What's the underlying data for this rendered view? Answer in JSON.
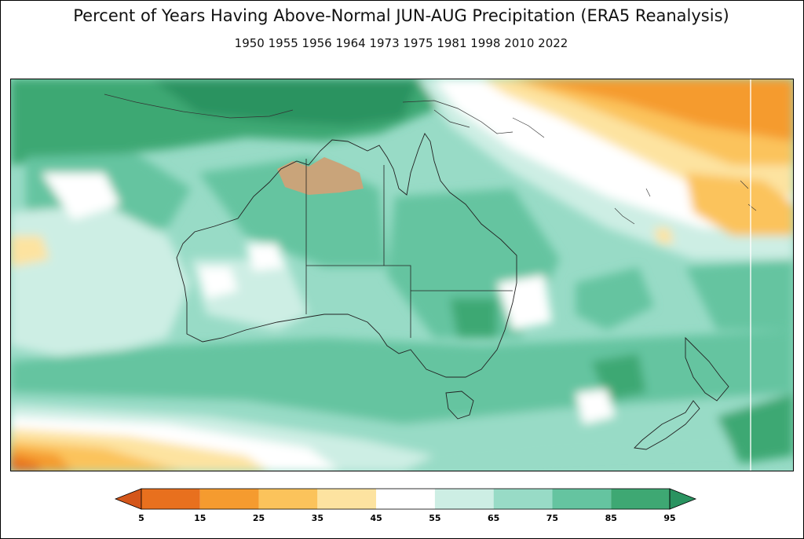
{
  "title": "Percent of Years Having Above-Normal JUN-AUG Precipitation (ERA5 Reanalysis)",
  "subtitle": "1950 1955 1956 1964 1973 1975 1981 1998 2010 2022",
  "colorbar": {
    "ticks": [
      "5",
      "15",
      "25",
      "35",
      "45",
      "55",
      "65",
      "75",
      "85",
      "95"
    ],
    "colors": [
      "#e8701e",
      "#f59b2f",
      "#fbc35b",
      "#fde3a0",
      "#ffffff",
      "#cdeee4",
      "#98dbc6",
      "#65c4a0",
      "#3ea873"
    ],
    "under_color": "#d4561a",
    "over_color": "#2a9360"
  }
}
